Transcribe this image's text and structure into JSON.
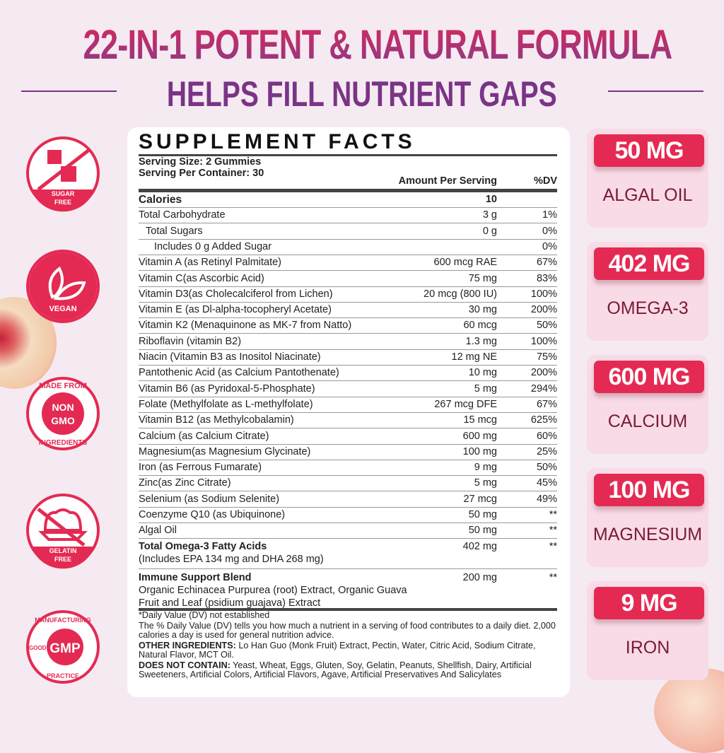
{
  "header": {
    "title": "22-IN-1 POTENT & NATURAL FORMULA",
    "subtitle": "HELPS FILL NUTRIENT GAPS"
  },
  "badges": [
    {
      "icon": "sugar-free-icon",
      "lines": [
        "SUGAR",
        "FREE"
      ]
    },
    {
      "icon": "vegan-leaf-icon",
      "lines": [
        "VEGAN"
      ]
    },
    {
      "icon": "non-gmo-icon",
      "lines": [
        "MADE FROM",
        "NON",
        "GMO",
        "INGREDIENTS"
      ]
    },
    {
      "icon": "gelatin-free-icon",
      "lines": [
        "GELATIN",
        "FREE"
      ]
    },
    {
      "icon": "gmp-icon",
      "lines": [
        "MANUFACTURING",
        "GMP",
        "GOOD",
        "PRACTICE"
      ]
    }
  ],
  "facts": {
    "title": "SUPPLEMENT FACTS",
    "serving_size": "Serving Size: 2 Gummies",
    "servings": "Serving Per Container: 30",
    "amount_header": "Amount Per Serving",
    "dv_header": "%DV",
    "rows": [
      {
        "name": "Calories",
        "amount": "10",
        "dv": "",
        "bold": true
      },
      {
        "name": "Total Carbohydrate",
        "amount": "3 g",
        "dv": "1%"
      },
      {
        "name": "Total Sugars",
        "amount": "0 g",
        "dv": "0%",
        "indent": 1
      },
      {
        "name": "Includes 0 g Added Sugar",
        "amount": "",
        "dv": "0%",
        "indent": 2
      },
      {
        "name": "Vitamin A (as Retinyl Palmitate)",
        "amount": "600 mcg RAE",
        "dv": "67%"
      },
      {
        "name": "Vitamin C(as Ascorbic Acid)",
        "amount": "75 mg",
        "dv": "83%"
      },
      {
        "name": "Vitamin D3(as Cholecalciferol from Lichen)",
        "amount": "20 mcg (800 IU)",
        "dv": "100%"
      },
      {
        "name": "Vitamin E (as Dl-alpha-tocopheryl Acetate)",
        "amount": "30 mg",
        "dv": "200%"
      },
      {
        "name": "Vitamin K2 (Menaquinone as MK-7 from Natto)",
        "amount": "60 mcg",
        "dv": "50%"
      },
      {
        "name": "Riboflavin (vitamin B2)",
        "amount": "1.3 mg",
        "dv": "100%"
      },
      {
        "name": "Niacin (Vitamin B3 as Inositol Niacinate)",
        "amount": "12 mg NE",
        "dv": "75%"
      },
      {
        "name": "Pantothenic Acid (as Calcium Pantothenate)",
        "amount": "10 mg",
        "dv": "200%"
      },
      {
        "name": "Vitamin B6 (as Pyridoxal-5-Phosphate)",
        "amount": "5 mg",
        "dv": "294%"
      },
      {
        "name": "Folate (Methylfolate as L-methylfolate)",
        "amount": "267 mcg DFE",
        "dv": "67%"
      },
      {
        "name": "Vitamin B12 (as Methylcobalamin)",
        "amount": "15 mcg",
        "dv": "625%"
      },
      {
        "name": "Calcium (as Calcium Citrate)",
        "amount": "600 mg",
        "dv": "60%"
      },
      {
        "name": "Magnesium(as Magnesium Glycinate)",
        "amount": "100 mg",
        "dv": "25%"
      },
      {
        "name": "Iron (as Ferrous Fumarate)",
        "amount": "9 mg",
        "dv": "50%"
      },
      {
        "name": "Zinc(as Zinc Citrate)",
        "amount": "5 mg",
        "dv": "45%"
      },
      {
        "name": "Selenium (as Sodium Selenite)",
        "amount": "27 mcg",
        "dv": "49%"
      },
      {
        "name": "Coenzyme Q10 (as Ubiquinone)",
        "amount": "50 mg",
        "dv": "**"
      },
      {
        "name": "Algal Oil",
        "amount": "50 mg",
        "dv": "**"
      }
    ],
    "omega": {
      "name": "Total Omega-3 Fatty Acids",
      "sub": "(Includes EPA 134 mg and DHA 268 mg)",
      "amount": "402 mg",
      "dv": "**"
    },
    "blend": {
      "name": "Immune Support Blend",
      "sub1": "Organic Echinacea Purpurea (root) Extract, Organic Guava",
      "sub2": "Fruit and Leaf (psidium guajava) Extract",
      "amount": "200 mg",
      "dv": "**"
    },
    "footnote": "*Daily Value (DV) not established",
    "dv_note": "The % Daily Value (DV) tells you how much a nutrient in a serving of food contributes to a daily diet. 2,000 calories a day is used for general nutrition advice.",
    "other_label": "OTHER INGREDIENTS:",
    "other": " Lo Han Guo (Monk Fruit) Extract, Pectin, Water, Citric Acid, Sodium Citrate, Natural Flavor, MCT Oil.",
    "dnc_label": "DOES NOT CONTAIN:",
    "dnc": " Yeast, Wheat, Eggs, Gluten, Soy, Gelatin, Peanuts, Shellfish, Dairy, Artificial Sweeteners, Artificial Colors, Artificial Flavors, Agave, Artificial Preservatives And Salicylates"
  },
  "highlights": [
    {
      "value": "50 MG",
      "label": "ALGAL OIL"
    },
    {
      "value": "402 MG",
      "label": "OMEGA-3"
    },
    {
      "value": "600 MG",
      "label": "CALCIUM"
    },
    {
      "value": "100 MG",
      "label": "MAGNESIUM"
    },
    {
      "value": "9 MG",
      "label": "IRON"
    }
  ],
  "colors": {
    "accent": "#e42a53",
    "title_top": "#d8285c",
    "title_bottom": "#7a3486",
    "background": "#f5eaf2",
    "card": "#f8dbe6"
  }
}
